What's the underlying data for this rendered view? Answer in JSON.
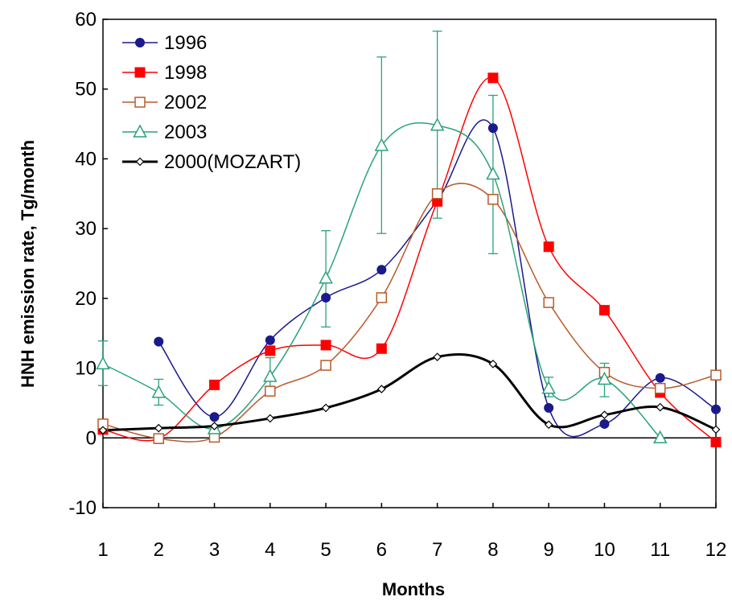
{
  "chart_data": {
    "type": "line",
    "title": "",
    "xlabel": "Months",
    "ylabel": "HNH emission rate, Tg/month",
    "xlim": [
      1,
      12
    ],
    "ylim": [
      -10,
      60
    ],
    "x_ticks": [
      "1",
      "2",
      "3",
      "4",
      "5",
      "6",
      "7",
      "8",
      "9",
      "10",
      "11",
      "12"
    ],
    "y_ticks": [
      "-10",
      "0",
      "10",
      "20",
      "30",
      "40",
      "50",
      "60"
    ],
    "grid": false,
    "legend_position": "top-left",
    "series": [
      {
        "name": "1996",
        "color": "#1a1a8c",
        "marker": "filled-circle",
        "points": [
          [
            2,
            13.8
          ],
          [
            3,
            3.0
          ],
          [
            4,
            14.0
          ],
          [
            5,
            20.1
          ],
          [
            6,
            24.1
          ],
          [
            7,
            34.0
          ],
          [
            8,
            44.4
          ],
          [
            9,
            4.3
          ],
          [
            10,
            2.0
          ],
          [
            11,
            8.6
          ],
          [
            12,
            4.1
          ]
        ]
      },
      {
        "name": "1998",
        "color": "#ff0000",
        "marker": "filled-square",
        "points": [
          [
            1,
            1.2
          ],
          [
            2,
            -0.1
          ],
          [
            3,
            7.6
          ],
          [
            4,
            12.5
          ],
          [
            5,
            13.3
          ],
          [
            6,
            12.8
          ],
          [
            7,
            33.9
          ],
          [
            8,
            51.6
          ],
          [
            9,
            27.4
          ],
          [
            10,
            18.3
          ],
          [
            11,
            6.5
          ],
          [
            12,
            -0.6
          ]
        ]
      },
      {
        "name": "2002",
        "color": "#b85a2a",
        "marker": "open-square",
        "points": [
          [
            1,
            2.0
          ],
          [
            2,
            -0.1
          ],
          [
            3,
            0.1
          ],
          [
            4,
            6.7
          ],
          [
            5,
            10.4
          ],
          [
            6,
            20.1
          ],
          [
            7,
            35.0
          ],
          [
            8,
            34.2
          ],
          [
            9,
            19.4
          ],
          [
            10,
            9.4
          ],
          [
            11,
            7.1
          ],
          [
            12,
            9.0
          ]
        ]
      },
      {
        "name": "2003",
        "color": "#2aa37a",
        "marker": "open-triangle",
        "points": [
          [
            1,
            10.6
          ],
          [
            2,
            6.5
          ],
          [
            3,
            1.3
          ],
          [
            4,
            8.8
          ],
          [
            5,
            22.9
          ],
          [
            6,
            41.9
          ],
          [
            7,
            44.8
          ],
          [
            8,
            37.8
          ],
          [
            9,
            7.1
          ],
          [
            10,
            8.4
          ],
          [
            11,
            0.0
          ]
        ],
        "error_bars": [
          [
            1,
            7.5,
            13.9
          ],
          [
            2,
            4.7,
            8.4
          ],
          [
            4,
            6.6,
            11.5
          ],
          [
            5,
            15.9,
            29.7
          ],
          [
            6,
            29.3,
            54.6
          ],
          [
            7,
            31.5,
            58.3
          ],
          [
            8,
            26.4,
            49.1
          ],
          [
            9,
            5.9,
            8.7
          ],
          [
            10,
            5.9,
            10.7
          ]
        ]
      },
      {
        "name": "2000(MOZART)",
        "color": "#000000",
        "marker": "open-diamond",
        "line_width": 3,
        "points": [
          [
            1,
            1.1
          ],
          [
            2,
            1.4
          ],
          [
            3,
            1.7
          ],
          [
            4,
            2.8
          ],
          [
            5,
            4.3
          ],
          [
            6,
            7.0
          ],
          [
            7,
            11.6
          ],
          [
            8,
            10.6
          ],
          [
            9,
            1.9
          ],
          [
            10,
            3.3
          ],
          [
            11,
            4.4
          ],
          [
            12,
            1.2
          ]
        ]
      }
    ]
  }
}
